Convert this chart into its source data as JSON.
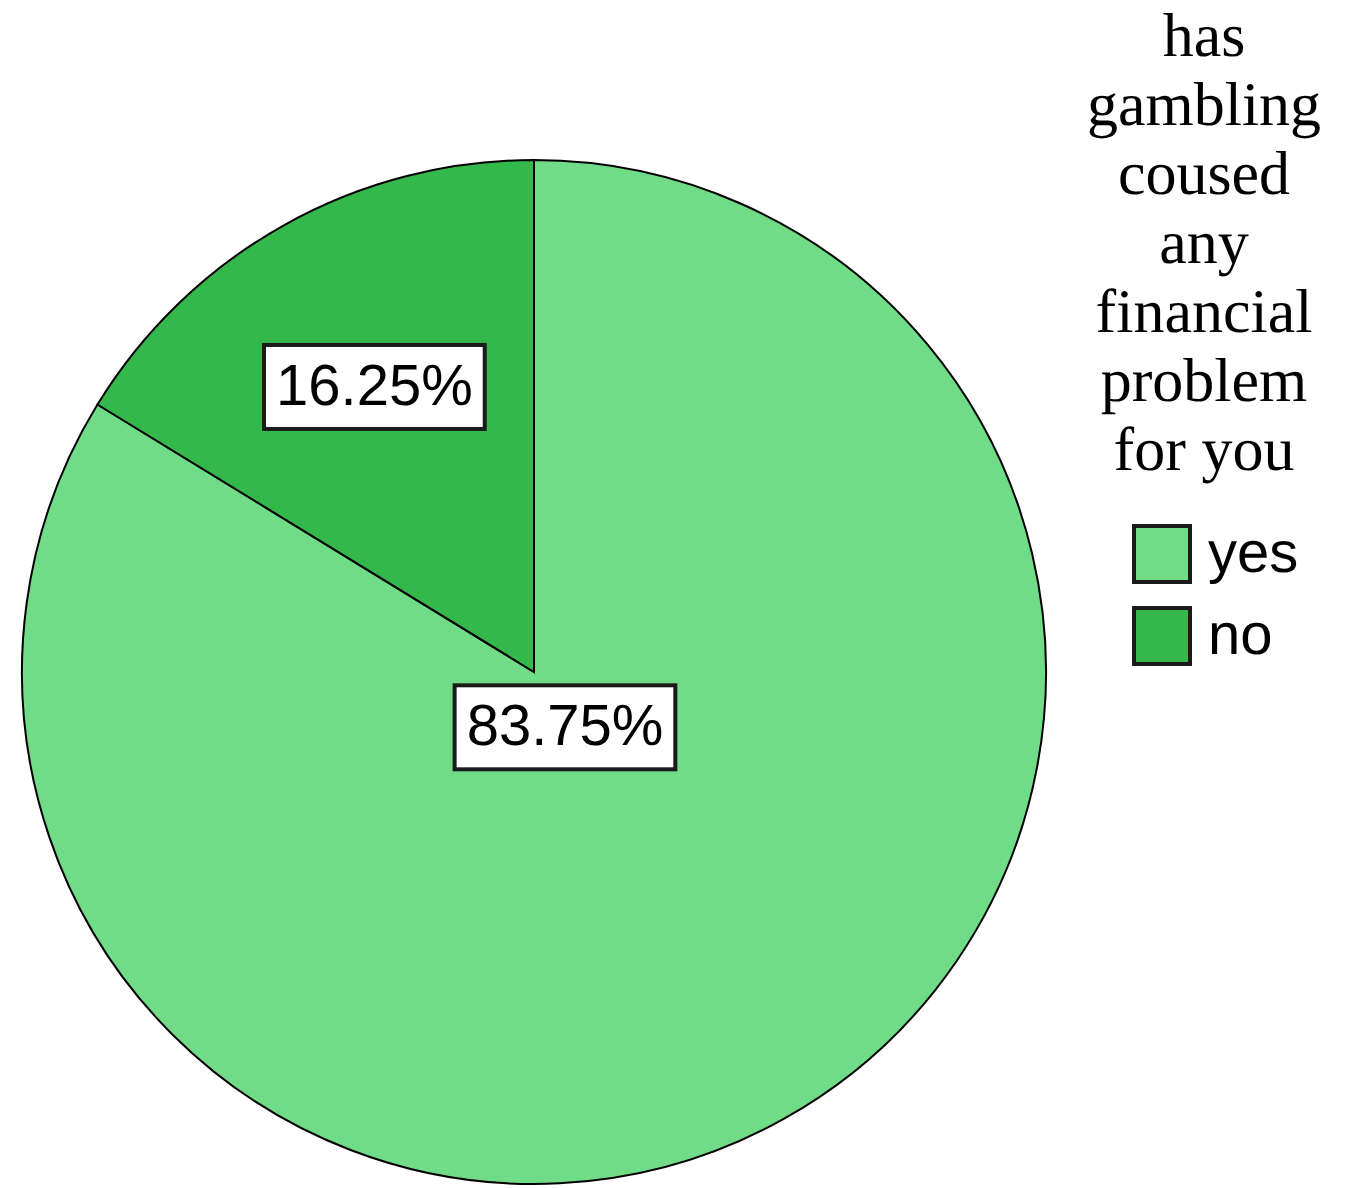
{
  "chart_data": {
    "type": "pie",
    "legend_title": "has gambling coused any financial problem for you",
    "categories": [
      "yes",
      "no"
    ],
    "values": [
      83.75,
      16.25
    ],
    "colors": [
      "#70dc88",
      "#35b84b"
    ],
    "value_labels": [
      "83.75%",
      "16.25%"
    ],
    "legend": "top right"
  }
}
